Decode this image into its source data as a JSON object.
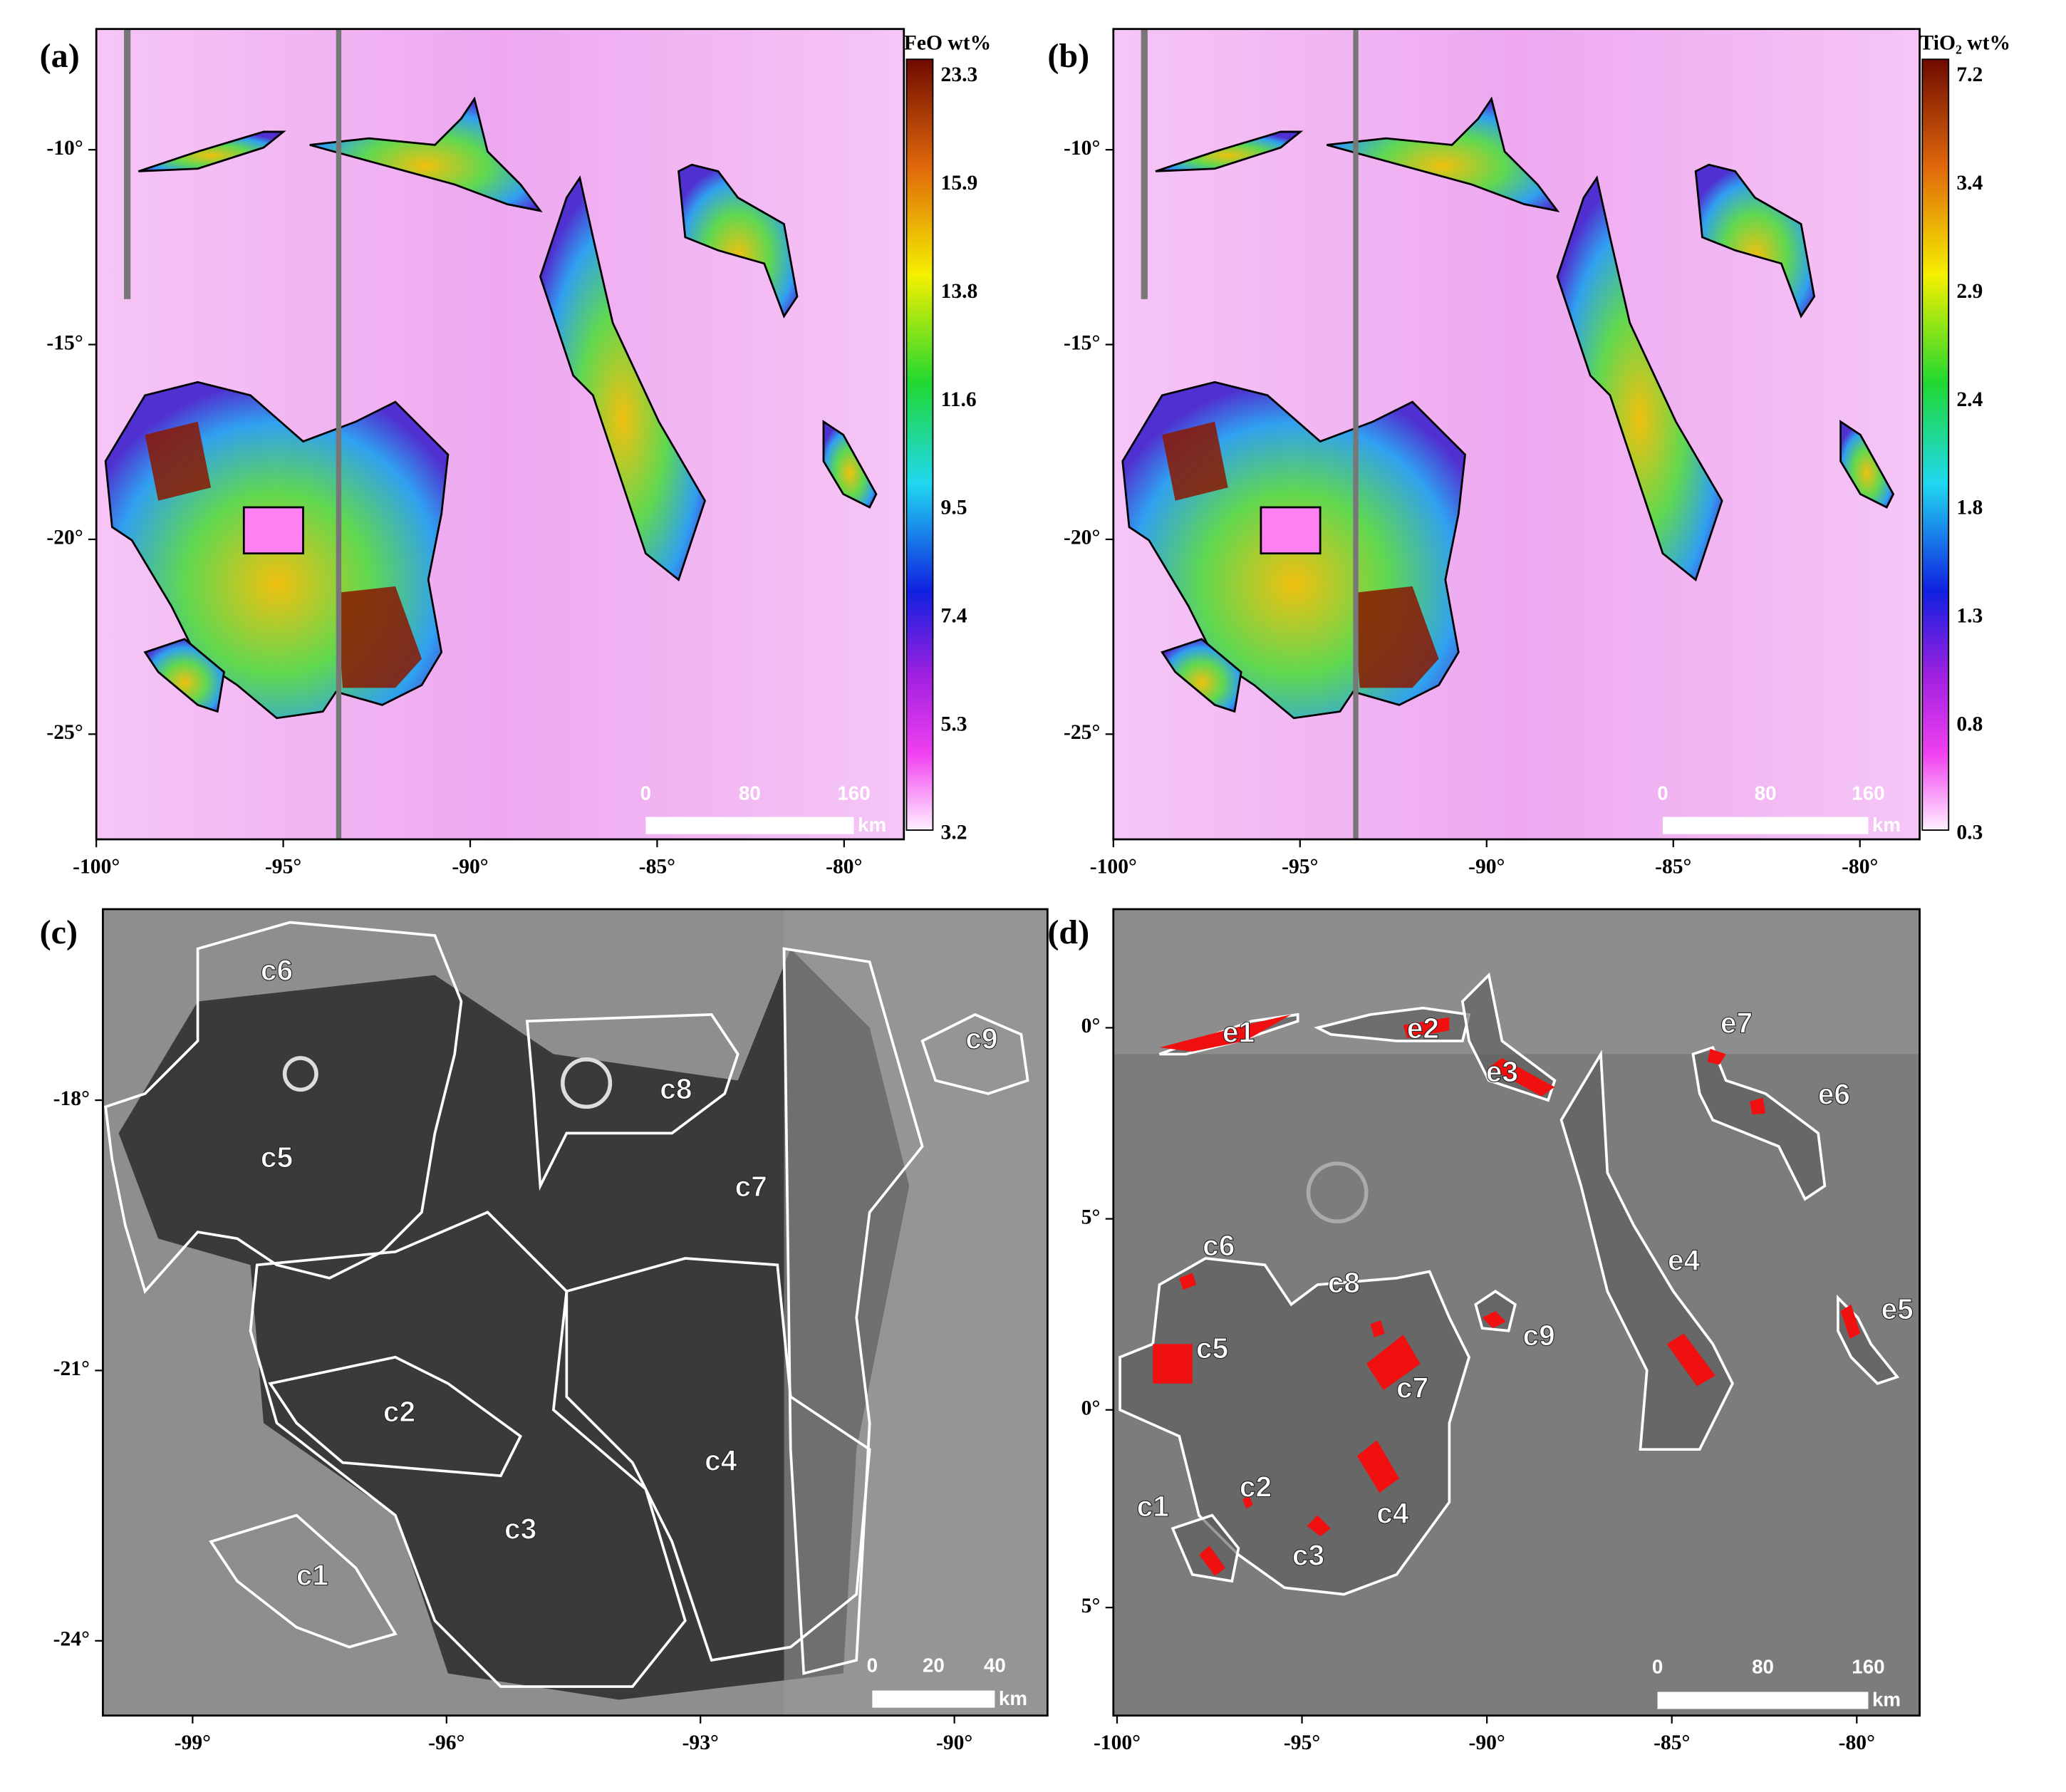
{
  "panels": [
    {
      "label": "(a)",
      "xlim": [
        -100,
        -78.4
      ],
      "ylim": [
        -6.9,
        -27.7
      ],
      "xticks": [
        {
          "value": -100,
          "label": "-100°"
        },
        {
          "value": -95,
          "label": "-95°"
        },
        {
          "value": -90,
          "label": "-90°"
        },
        {
          "value": -85,
          "label": "-85°"
        },
        {
          "value": -80,
          "label": "-80°"
        }
      ],
      "yticks": [
        {
          "value": -10,
          "label": "-10°"
        },
        {
          "value": -15,
          "label": "-15°"
        },
        {
          "value": -20,
          "label": "-20°"
        },
        {
          "value": -25,
          "label": "-25°"
        }
      ],
      "colorbar": {
        "title": "FeO wt%",
        "ticks": [
          23.3,
          15.9,
          13.8,
          11.6,
          9.5,
          7.4,
          5.3,
          3.2
        ]
      },
      "scalebar": {
        "ticks": [
          0,
          80,
          160
        ],
        "unit": "km"
      }
    },
    {
      "label": "(b)",
      "xlim": [
        -100,
        -78.4
      ],
      "ylim": [
        -6.9,
        -27.7
      ],
      "xticks": [
        {
          "value": -100,
          "label": "-100°"
        },
        {
          "value": -95,
          "label": "-95°"
        },
        {
          "value": -90,
          "label": "-90°"
        },
        {
          "value": -85,
          "label": "-85°"
        },
        {
          "value": -80,
          "label": "-80°"
        }
      ],
      "yticks": [
        {
          "value": -10,
          "label": "-10°"
        },
        {
          "value": -15,
          "label": "-15°"
        },
        {
          "value": -20,
          "label": "-20°"
        },
        {
          "value": -25,
          "label": "-25°"
        }
      ],
      "colorbar": {
        "title": "TiO₂ wt%",
        "ticks": [
          7.2,
          3.4,
          2.9,
          2.4,
          1.8,
          1.3,
          0.8,
          0.3
        ]
      },
      "scalebar": {
        "ticks": [
          0,
          80,
          160
        ],
        "unit": "km"
      }
    },
    {
      "label": "(c)",
      "xlim": [
        -100.06,
        -88.9
      ],
      "ylim": [
        -15.88,
        -24.83
      ],
      "xticks": [
        {
          "value": -99,
          "label": "-99°"
        },
        {
          "value": -96,
          "label": "-96°"
        },
        {
          "value": -93,
          "label": "-93°"
        },
        {
          "value": -90,
          "label": "-90°"
        }
      ],
      "yticks": [
        {
          "value": -18,
          "label": "-18°"
        },
        {
          "value": -21,
          "label": "-21°"
        },
        {
          "value": -24,
          "label": "-24°"
        }
      ],
      "regions": [
        "c6",
        "c5",
        "c8",
        "c9",
        "c7",
        "c2",
        "c4",
        "c3",
        "c1"
      ],
      "scalebar": {
        "ticks": [
          0,
          20,
          40
        ],
        "unit": "km"
      }
    },
    {
      "label": "(d)",
      "xlim": [
        -100.1,
        -78.3
      ],
      "xticks": [
        {
          "value": -100,
          "label": "-100°"
        },
        {
          "value": -95,
          "label": "-95°"
        },
        {
          "value": -90,
          "label": "-90°"
        },
        {
          "value": -85,
          "label": "-85°"
        },
        {
          "value": -80,
          "label": "-80°"
        }
      ],
      "ylabels": [
        "0°",
        "5°",
        "0°",
        "5°"
      ],
      "regions": [
        "e1",
        "e2",
        "e3",
        "e7",
        "e6",
        "e4",
        "e5",
        "c6",
        "c8",
        "c5",
        "c9",
        "c7",
        "c2",
        "c1",
        "c4",
        "c3"
      ],
      "scalebar": {
        "ticks": [
          0,
          80,
          160
        ],
        "unit": "km"
      }
    }
  ]
}
